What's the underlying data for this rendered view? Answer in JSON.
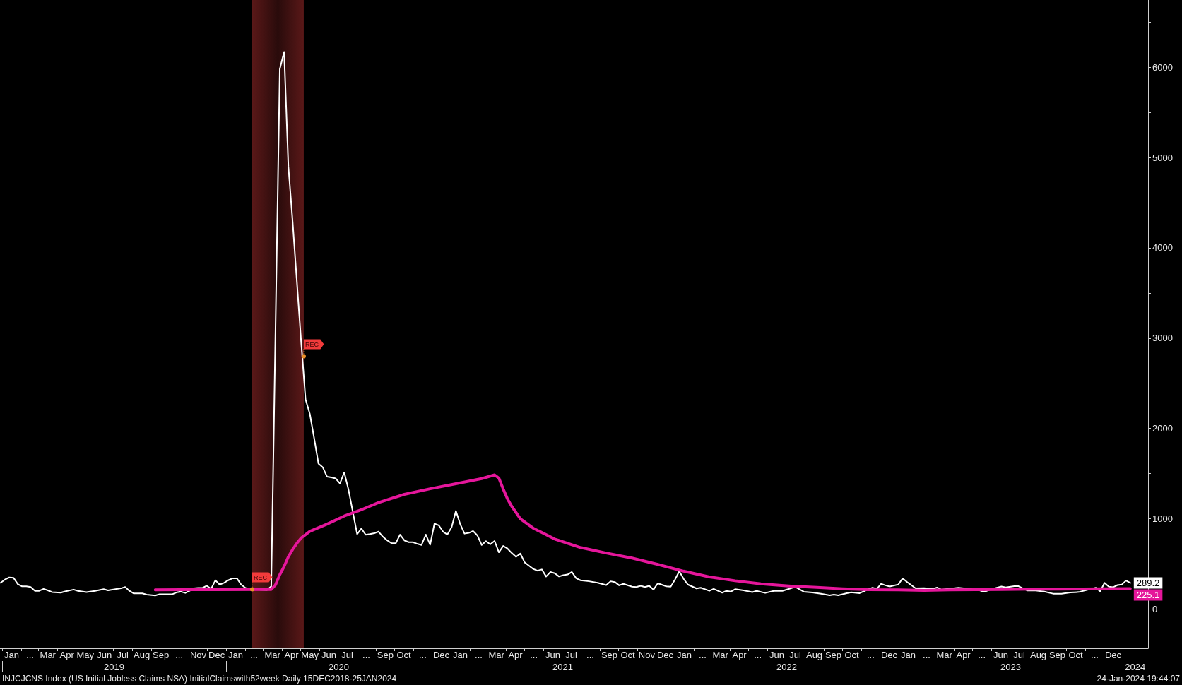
{
  "chart_data": {
    "type": "line",
    "xlim": [
      "2018-12-28",
      "2024-02-11"
    ],
    "xticks": [
      {
        "value": "2019-01-01",
        "label": null
      },
      {
        "value": "2019-01-16",
        "label": "Jan"
      },
      {
        "value": "2019-02-01",
        "label": null
      },
      {
        "value": "2019-02-15",
        "label": "..."
      },
      {
        "value": "2019-03-01",
        "label": null
      },
      {
        "value": "2019-03-16",
        "label": "Mar"
      },
      {
        "value": "2019-04-01",
        "label": null
      },
      {
        "value": "2019-04-16",
        "label": "Apr"
      },
      {
        "value": "2019-05-01",
        "label": null
      },
      {
        "value": "2019-05-16",
        "label": "May"
      },
      {
        "value": "2019-06-01",
        "label": null
      },
      {
        "value": "2019-06-16",
        "label": "Jun"
      },
      {
        "value": "2019-07-01",
        "label": null
      },
      {
        "value": "2019-07-16",
        "label": "Jul"
      },
      {
        "value": "2019-08-01",
        "label": null
      },
      {
        "value": "2019-08-16",
        "label": "Aug"
      },
      {
        "value": "2019-09-01",
        "label": null
      },
      {
        "value": "2019-09-16",
        "label": "Sep"
      },
      {
        "value": "2019-10-01",
        "label": null
      },
      {
        "value": "2019-10-16",
        "label": "..."
      },
      {
        "value": "2019-11-01",
        "label": null
      },
      {
        "value": "2019-11-16",
        "label": "Nov"
      },
      {
        "value": "2019-12-01",
        "label": null
      },
      {
        "value": "2019-12-16",
        "label": "Dec"
      },
      {
        "value": "2020-01-01",
        "label": null
      },
      {
        "value": "2020-01-16",
        "label": "Jan"
      },
      {
        "value": "2020-02-01",
        "label": null
      },
      {
        "value": "2020-02-15",
        "label": "..."
      },
      {
        "value": "2020-03-01",
        "label": null
      },
      {
        "value": "2020-03-16",
        "label": "Mar"
      },
      {
        "value": "2020-04-01",
        "label": null
      },
      {
        "value": "2020-04-16",
        "label": "Apr"
      },
      {
        "value": "2020-05-01",
        "label": null
      },
      {
        "value": "2020-05-16",
        "label": "May"
      },
      {
        "value": "2020-06-01",
        "label": null
      },
      {
        "value": "2020-06-16",
        "label": "Jun"
      },
      {
        "value": "2020-07-01",
        "label": null
      },
      {
        "value": "2020-07-16",
        "label": "Jul"
      },
      {
        "value": "2020-08-01",
        "label": null
      },
      {
        "value": "2020-08-16",
        "label": "..."
      },
      {
        "value": "2020-09-01",
        "label": null
      },
      {
        "value": "2020-09-16",
        "label": "Sep"
      },
      {
        "value": "2020-10-01",
        "label": null
      },
      {
        "value": "2020-10-16",
        "label": "Oct"
      },
      {
        "value": "2020-11-01",
        "label": null
      },
      {
        "value": "2020-11-16",
        "label": "..."
      },
      {
        "value": "2020-12-01",
        "label": null
      },
      {
        "value": "2020-12-16",
        "label": "Dec"
      },
      {
        "value": "2021-01-01",
        "label": null
      },
      {
        "value": "2021-01-16",
        "label": "Jan"
      },
      {
        "value": "2021-02-01",
        "label": null
      },
      {
        "value": "2021-02-15",
        "label": "..."
      },
      {
        "value": "2021-03-01",
        "label": null
      },
      {
        "value": "2021-03-16",
        "label": "Mar"
      },
      {
        "value": "2021-04-01",
        "label": null
      },
      {
        "value": "2021-04-16",
        "label": "Apr"
      },
      {
        "value": "2021-05-01",
        "label": null
      },
      {
        "value": "2021-05-16",
        "label": "..."
      },
      {
        "value": "2021-06-01",
        "label": null
      },
      {
        "value": "2021-06-16",
        "label": "Jun"
      },
      {
        "value": "2021-07-01",
        "label": null
      },
      {
        "value": "2021-07-16",
        "label": "Jul"
      },
      {
        "value": "2021-08-01",
        "label": null
      },
      {
        "value": "2021-08-16",
        "label": "..."
      },
      {
        "value": "2021-09-01",
        "label": null
      },
      {
        "value": "2021-09-16",
        "label": "Sep"
      },
      {
        "value": "2021-10-01",
        "label": null
      },
      {
        "value": "2021-10-16",
        "label": "Oct"
      },
      {
        "value": "2021-11-01",
        "label": null
      },
      {
        "value": "2021-11-16",
        "label": "Nov"
      },
      {
        "value": "2021-12-01",
        "label": null
      },
      {
        "value": "2021-12-16",
        "label": "Dec"
      },
      {
        "value": "2022-01-01",
        "label": null
      },
      {
        "value": "2022-01-16",
        "label": "Jan"
      },
      {
        "value": "2022-02-01",
        "label": null
      },
      {
        "value": "2022-02-15",
        "label": "..."
      },
      {
        "value": "2022-03-01",
        "label": null
      },
      {
        "value": "2022-03-16",
        "label": "Mar"
      },
      {
        "value": "2022-04-01",
        "label": null
      },
      {
        "value": "2022-04-16",
        "label": "Apr"
      },
      {
        "value": "2022-05-01",
        "label": null
      },
      {
        "value": "2022-05-16",
        "label": "..."
      },
      {
        "value": "2022-06-01",
        "label": null
      },
      {
        "value": "2022-06-16",
        "label": "Jun"
      },
      {
        "value": "2022-07-01",
        "label": null
      },
      {
        "value": "2022-07-16",
        "label": "Jul"
      },
      {
        "value": "2022-08-01",
        "label": null
      },
      {
        "value": "2022-08-16",
        "label": "Aug"
      },
      {
        "value": "2022-09-01",
        "label": null
      },
      {
        "value": "2022-09-16",
        "label": "Sep"
      },
      {
        "value": "2022-10-01",
        "label": null
      },
      {
        "value": "2022-10-16",
        "label": "Oct"
      },
      {
        "value": "2022-11-01",
        "label": null
      },
      {
        "value": "2022-11-16",
        "label": "..."
      },
      {
        "value": "2022-12-01",
        "label": null
      },
      {
        "value": "2022-12-16",
        "label": "Dec"
      },
      {
        "value": "2023-01-01",
        "label": null
      },
      {
        "value": "2023-01-16",
        "label": "Jan"
      },
      {
        "value": "2023-02-01",
        "label": null
      },
      {
        "value": "2023-02-15",
        "label": "..."
      },
      {
        "value": "2023-03-01",
        "label": null
      },
      {
        "value": "2023-03-16",
        "label": "Mar"
      },
      {
        "value": "2023-04-01",
        "label": null
      },
      {
        "value": "2023-04-16",
        "label": "Apr"
      },
      {
        "value": "2023-05-01",
        "label": null
      },
      {
        "value": "2023-05-16",
        "label": "..."
      },
      {
        "value": "2023-06-01",
        "label": null
      },
      {
        "value": "2023-06-16",
        "label": "Jun"
      },
      {
        "value": "2023-07-01",
        "label": null
      },
      {
        "value": "2023-07-16",
        "label": "Jul"
      },
      {
        "value": "2023-08-01",
        "label": null
      },
      {
        "value": "2023-08-16",
        "label": "Aug"
      },
      {
        "value": "2023-09-01",
        "label": null
      },
      {
        "value": "2023-09-16",
        "label": "Sep"
      },
      {
        "value": "2023-10-01",
        "label": null
      },
      {
        "value": "2023-10-16",
        "label": "Oct"
      },
      {
        "value": "2023-11-01",
        "label": null
      },
      {
        "value": "2023-11-16",
        "label": "..."
      },
      {
        "value": "2023-12-01",
        "label": null
      },
      {
        "value": "2023-12-16",
        "label": "Dec"
      },
      {
        "value": "2024-01-01",
        "label": null
      },
      {
        "value": "2024-02-01",
        "label": null
      }
    ],
    "x2lim": [
      "2018-12-28",
      "2024-02-11"
    ],
    "x2ticks": [
      {
        "value": "2019-01-01",
        "label": null
      },
      {
        "value": "2019-07-02",
        "label": "2019"
      },
      {
        "value": "2020-01-01",
        "label": null
      },
      {
        "value": "2020-07-02",
        "label": "2020"
      },
      {
        "value": "2021-01-01",
        "label": null
      },
      {
        "value": "2021-07-02",
        "label": "2021"
      },
      {
        "value": "2022-01-01",
        "label": null
      },
      {
        "value": "2022-07-02",
        "label": "2022"
      },
      {
        "value": "2023-01-01",
        "label": null
      },
      {
        "value": "2023-07-02",
        "label": "2023"
      },
      {
        "value": "2024-01-01",
        "label": null
      },
      {
        "value": "2024-01-21",
        "label": "2024"
      }
    ],
    "ylim": [
      -435,
      6745
    ],
    "yticks": [
      0,
      {
        "value": 500,
        "label": null
      },
      1000,
      {
        "value": 1500,
        "label": null
      },
      2000,
      {
        "value": 2500,
        "label": null
      },
      3000,
      {
        "value": 3500,
        "label": null
      },
      4000,
      {
        "value": 4500,
        "label": null
      },
      5000,
      {
        "value": 5500,
        "label": null
      },
      6000,
      {
        "value": 6500,
        "label": null
      }
    ],
    "series": [
      {
        "color": "#ffffff",
        "x": [
          "2018-12-29",
          "2019-01-05",
          "2019-01-12",
          "2019-01-19",
          "2019-01-26",
          "2019-02-02",
          "2019-02-09",
          "2019-02-16",
          "2019-02-23",
          "2019-03-02",
          "2019-03-09",
          "2019-03-16",
          "2019-03-23",
          "2019-04-06",
          "2019-04-13",
          "2019-04-27",
          "2019-05-04",
          "2019-05-18",
          "2019-06-01",
          "2019-06-15",
          "2019-06-22",
          "2019-06-29",
          "2019-07-13",
          "2019-07-20",
          "2019-07-27",
          "2019-08-03",
          "2019-08-17",
          "2019-08-24",
          "2019-09-07",
          "2019-09-14",
          "2019-10-05",
          "2019-10-12",
          "2019-10-19",
          "2019-10-26",
          "2019-11-02",
          "2019-11-09",
          "2019-11-16",
          "2019-11-23",
          "2019-11-30",
          "2019-12-07",
          "2019-12-14",
          "2019-12-21",
          "2019-12-28",
          "2020-01-04",
          "2020-01-11",
          "2020-01-18",
          "2020-01-25",
          "2020-02-01",
          "2020-02-08",
          "2020-02-22",
          "2020-03-07",
          "2020-03-14",
          "2020-03-21",
          "2020-03-28",
          "2020-04-04",
          "2020-04-11",
          "2020-04-18",
          "2020-04-25",
          "2020-05-02",
          "2020-05-09",
          "2020-05-16",
          "2020-05-23",
          "2020-05-30",
          "2020-06-06",
          "2020-06-13",
          "2020-06-20",
          "2020-06-27",
          "2020-07-04",
          "2020-07-11",
          "2020-07-18",
          "2020-07-25",
          "2020-08-01",
          "2020-08-08",
          "2020-08-15",
          "2020-08-22",
          "2020-08-29",
          "2020-09-05",
          "2020-09-12",
          "2020-09-19",
          "2020-09-26",
          "2020-10-03",
          "2020-10-10",
          "2020-10-17",
          "2020-10-24",
          "2020-10-31",
          "2020-11-07",
          "2020-11-14",
          "2020-11-21",
          "2020-11-28",
          "2020-12-05",
          "2020-12-12",
          "2020-12-19",
          "2020-12-26",
          "2021-01-02",
          "2021-01-09",
          "2021-01-16",
          "2021-01-23",
          "2021-01-30",
          "2021-02-06",
          "2021-02-13",
          "2021-02-20",
          "2021-02-27",
          "2021-03-06",
          "2021-03-13",
          "2021-03-20",
          "2021-03-27",
          "2021-04-03",
          "2021-04-10",
          "2021-04-17",
          "2021-04-24",
          "2021-05-01",
          "2021-05-08",
          "2021-05-15",
          "2021-05-22",
          "2021-05-29",
          "2021-06-05",
          "2021-06-12",
          "2021-06-19",
          "2021-06-26",
          "2021-07-03",
          "2021-07-10",
          "2021-07-17",
          "2021-07-24",
          "2021-07-31",
          "2021-08-14",
          "2021-08-28",
          "2021-09-11",
          "2021-09-18",
          "2021-09-25",
          "2021-10-02",
          "2021-10-09",
          "2021-10-23",
          "2021-10-30",
          "2021-11-06",
          "2021-11-13",
          "2021-11-20",
          "2021-11-27",
          "2021-12-04",
          "2021-12-18",
          "2021-12-25",
          "2022-01-01",
          "2022-01-08",
          "2022-01-15",
          "2022-01-22",
          "2022-02-05",
          "2022-02-12",
          "2022-02-26",
          "2022-03-05",
          "2022-03-19",
          "2022-03-26",
          "2022-04-02",
          "2022-04-09",
          "2022-04-23",
          "2022-05-07",
          "2022-05-14",
          "2022-05-28",
          "2022-06-11",
          "2022-06-25",
          "2022-07-09",
          "2022-07-16",
          "2022-07-30",
          "2022-08-13",
          "2022-08-27",
          "2022-09-10",
          "2022-09-17",
          "2022-09-24",
          "2022-10-08",
          "2022-10-15",
          "2022-10-29",
          "2022-11-12",
          "2022-11-19",
          "2022-11-26",
          "2022-12-03",
          "2022-12-10",
          "2022-12-17",
          "2022-12-31",
          "2023-01-07",
          "2023-01-14",
          "2023-01-28",
          "2023-02-11",
          "2023-02-25",
          "2023-03-04",
          "2023-03-11",
          "2023-03-25",
          "2023-04-08",
          "2023-04-22",
          "2023-05-06",
          "2023-05-20",
          "2023-06-03",
          "2023-06-17",
          "2023-06-24",
          "2023-07-08",
          "2023-07-15",
          "2023-07-29",
          "2023-08-12",
          "2023-08-26",
          "2023-09-09",
          "2023-09-23",
          "2023-10-07",
          "2023-10-21",
          "2023-11-04",
          "2023-11-18",
          "2023-11-25",
          "2023-12-02",
          "2023-12-09",
          "2023-12-16",
          "2023-12-23",
          "2023-12-30",
          "2024-01-06",
          "2024-01-13"
        ],
        "values": [
          290,
          326,
          349,
          346,
          276,
          251,
          251,
          243,
          201,
          201,
          223,
          206,
          187,
          181,
          195,
          215,
          201,
          187,
          201,
          220,
          206,
          215,
          229,
          243,
          201,
          173,
          173,
          159,
          150,
          164,
          164,
          184,
          192,
          178,
          201,
          229,
          234,
          234,
          257,
          223,
          318,
          271,
          290,
          318,
          340,
          340,
          271,
          234,
          223,
          215,
          210,
          251,
          3100,
          5980,
          6170,
          4900,
          4280,
          3610,
          2940,
          2320,
          2160,
          1890,
          1610,
          1570,
          1465,
          1457,
          1446,
          1390,
          1513,
          1320,
          1075,
          830,
          891,
          822,
          830,
          840,
          857,
          800,
          760,
          729,
          728,
          824,
          760,
          740,
          740,
          722,
          709,
          824,
          712,
          946,
          927,
          857,
          824,
          907,
          1086,
          941,
          835,
          843,
          863,
          815,
          709,
          751,
          717,
          754,
          628,
          698,
          670,
          620,
          578,
          614,
          516,
          480,
          444,
          424,
          438,
          360,
          410,
          396,
          360,
          374,
          382,
          410,
          340,
          318,
          307,
          290,
          265,
          307,
          299,
          262,
          279,
          248,
          243,
          257,
          243,
          257,
          215,
          285,
          251,
          248,
          326,
          418,
          335,
          271,
          228,
          236,
          201,
          223,
          181,
          201,
          192,
          220,
          206,
          187,
          201,
          178,
          200,
          200,
          230,
          245,
          191,
          182,
          170,
          152,
          159,
          152,
          175,
          185,
          176,
          218,
          237,
          222,
          280,
          262,
          250,
          272,
          339,
          300,
          230,
          232,
          223,
          238,
          215,
          225,
          236,
          226,
          220,
          191,
          225,
          250,
          240,
          253,
          253,
          205,
          205,
          193,
          170,
          170,
          183,
          188,
          212,
          236,
          195,
          290,
          247,
          241,
          265,
          270,
          315,
          289.2
        ],
        "value_labels": [
          null,
          null,
          null,
          null,
          null,
          null,
          null,
          null,
          null,
          null,
          null,
          null,
          null,
          null,
          null,
          null,
          null,
          null,
          null,
          null,
          null,
          null,
          null,
          null,
          null,
          null,
          null,
          null,
          null,
          null,
          null,
          null,
          null,
          null,
          null,
          null,
          null,
          null,
          null,
          null,
          null,
          null,
          null,
          null,
          null,
          null,
          null,
          null,
          null,
          null,
          null,
          null,
          null,
          null,
          null,
          null,
          null,
          null,
          null,
          null,
          null,
          null,
          null,
          null,
          null,
          null,
          null,
          null,
          null,
          null,
          null,
          null,
          null,
          null,
          null,
          null,
          null,
          null,
          null,
          null,
          null,
          null,
          null,
          null,
          null,
          null,
          null,
          null,
          null,
          null,
          null,
          null,
          null,
          null,
          null,
          null,
          null,
          null,
          null,
          null,
          null,
          null,
          null,
          null,
          null,
          null,
          null,
          null,
          null,
          null,
          null,
          null,
          null,
          null,
          null,
          null,
          null,
          null,
          null,
          null,
          null,
          null,
          null,
          null,
          null,
          null,
          null,
          null,
          null,
          null,
          null,
          null,
          null,
          null,
          null,
          null,
          null,
          null,
          null,
          null,
          null,
          null,
          null,
          null,
          null,
          null,
          null,
          null,
          null,
          null,
          null,
          null,
          null,
          null,
          null,
          null,
          null,
          null,
          null,
          null,
          null,
          null,
          null,
          null,
          null,
          null,
          null,
          null,
          null,
          null,
          null,
          null,
          null,
          null,
          null,
          null,
          null,
          null,
          null,
          null,
          null,
          null,
          null,
          null,
          null,
          null,
          null,
          null,
          null,
          null,
          null,
          null,
          null,
          null,
          null,
          null,
          null,
          null,
          null,
          null,
          null,
          null,
          null,
          null,
          null,
          null,
          null,
          null,
          null,
          "289.2"
        ]
      },
      {
        "color": "#e5169b",
        "x": [
          "2019-09-07",
          "2019-12-07",
          "2020-03-14",
          "2020-03-21",
          "2020-03-28",
          "2020-04-04",
          "2020-04-11",
          "2020-04-18",
          "2020-04-25",
          "2020-05-02",
          "2020-05-16",
          "2020-06-13",
          "2020-07-11",
          "2020-08-08",
          "2020-09-05",
          "2020-10-17",
          "2020-11-28",
          "2021-01-09",
          "2021-02-20",
          "2021-03-13",
          "2021-03-20",
          "2021-03-27",
          "2021-04-03",
          "2021-04-10",
          "2021-04-24",
          "2021-05-15",
          "2021-06-19",
          "2021-07-31",
          "2021-09-11",
          "2021-10-23",
          "2021-12-04",
          "2022-01-15",
          "2022-02-26",
          "2022-04-09",
          "2022-05-21",
          "2022-07-09",
          "2022-08-20",
          "2022-10-01",
          "2022-11-12",
          "2022-12-31",
          "2023-02-11",
          "2023-03-25",
          "2023-05-06",
          "2023-06-17",
          "2023-08-05",
          "2023-09-16",
          "2023-10-28",
          "2024-01-13"
        ],
        "values": [
          213,
          214,
          216,
          268,
          380,
          470,
          580,
          660,
          730,
          788,
          860,
          941,
          1030,
          1100,
          1179,
          1270,
          1332,
          1388,
          1444,
          1485,
          1450,
          1330,
          1220,
          1137,
          1000,
          895,
          775,
          681,
          620,
          564,
          494,
          419,
          355,
          313,
          279,
          253,
          239,
          224,
          215,
          212,
          206,
          212,
          215,
          216,
          220,
          221,
          222,
          225.1
        ],
        "value_labels": [
          null,
          null,
          null,
          null,
          null,
          null,
          null,
          null,
          null,
          null,
          null,
          null,
          null,
          null,
          null,
          null,
          null,
          null,
          null,
          null,
          null,
          null,
          null,
          null,
          null,
          null,
          null,
          null,
          null,
          null,
          null,
          null,
          null,
          null,
          null,
          null,
          null,
          null,
          null,
          null,
          null,
          null,
          null,
          null,
          null,
          null,
          null,
          "225.1"
        ]
      }
    ],
    "bands": [
      {
        "axis": "x",
        "from": "2020-02-12",
        "to": "2020-05-06",
        "color": "#5a1818"
      }
    ],
    "annotations": [
      "INJCJCNS Index (US Initial Jobless Claims NSA) InitialClaimswith52week Daily 15DEC2018-25JAN2024",
      "24-Jan-2024 19:44:07",
      {
        "text": "REC",
        "x": "2020-02-12",
        "y": 218
      },
      {
        "text": "REC",
        "x": "2020-05-06",
        "y": 2800
      }
    ]
  }
}
